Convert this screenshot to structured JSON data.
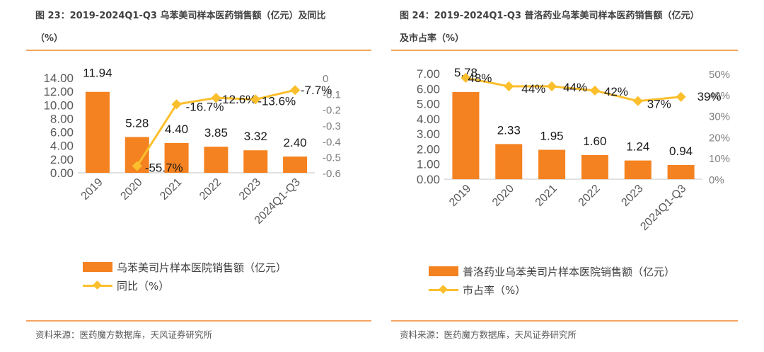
{
  "left": {
    "title_line1": "图 23：2019-2024Q1-Q3 乌苯美司样本医药销售额（亿元）及同比",
    "title_line2": "（%）",
    "legend": {
      "bar": "乌苯美司片样本医院销售额（亿元）",
      "line": "同比（%）"
    },
    "source": "资料来源：医药魔方数据库，天风证券研究所"
  },
  "right": {
    "title_line1": "图 24：2019-2024Q1-Q3 普洛药业乌苯美司样本医药销售额（亿元）",
    "title_line2": "及市占率（%）",
    "legend": {
      "bar": "普洛药业乌苯美司片样本医院销售额（亿元）",
      "line": "市占率（%）"
    },
    "source": "资料来源：医药魔方数据库，天风证券研究所"
  },
  "colors": {
    "bar": "#f58220",
    "line": "#fbbf2d",
    "rule": "#f4a460",
    "axis": "#d9d9d9",
    "tick_text": "#595959"
  },
  "chart_data": [
    {
      "type": "bar+line",
      "title": "图 23：2019-2024Q1-Q3 乌苯美司样本医药销售额（亿元）及同比（%）",
      "categories": [
        "2019",
        "2020",
        "2021",
        "2022",
        "2023",
        "2024Q1-Q3"
      ],
      "series": [
        {
          "name": "乌苯美司片样本医院销售额（亿元）",
          "type": "bar",
          "axis": "left",
          "values": [
            11.94,
            5.28,
            4.4,
            3.85,
            3.32,
            2.4
          ],
          "labels": [
            "11.94",
            "5.28",
            "4.40",
            "3.85",
            "3.32",
            "2.40"
          ]
        },
        {
          "name": "同比（%）",
          "type": "line",
          "axis": "right",
          "values": [
            null,
            -0.557,
            -0.167,
            -0.126,
            -0.136,
            -0.077
          ],
          "labels": [
            "",
            "-55.7%",
            "-16.7%",
            "-12.6%",
            "-13.6%",
            "-7.7%"
          ]
        }
      ],
      "y_left": {
        "ylim": [
          0,
          14
        ],
        "ticks": [
          "0.00",
          "2.00",
          "4.00",
          "6.00",
          "8.00",
          "10.00",
          "12.00",
          "14.00"
        ]
      },
      "y_right": {
        "ylim": [
          -0.6,
          0
        ],
        "ticks": [
          "-0.6",
          "-0.5",
          "-0.4",
          "-0.3",
          "-0.2",
          "-0.1",
          "0"
        ]
      },
      "grid": false,
      "legend_position": "bottom"
    },
    {
      "type": "bar+line",
      "title": "图 24：2019-2024Q1-Q3 普洛药业乌苯美司样本医药销售额（亿元）及市占率（%）",
      "categories": [
        "2019",
        "2020",
        "2021",
        "2022",
        "2023",
        "2024Q1-Q3"
      ],
      "series": [
        {
          "name": "普洛药业乌苯美司片样本医院销售额（亿元）",
          "type": "bar",
          "axis": "left",
          "values": [
            5.78,
            2.33,
            1.95,
            1.6,
            1.24,
            0.94
          ],
          "labels": [
            "5.78",
            "2.33",
            "1.95",
            "1.60",
            "1.24",
            "0.94"
          ]
        },
        {
          "name": "市占率（%）",
          "type": "line",
          "axis": "right",
          "values": [
            48,
            44,
            44,
            42,
            37,
            39
          ],
          "labels": [
            "48%",
            "44%",
            "44%",
            "42%",
            "37%",
            "39%"
          ]
        }
      ],
      "y_left": {
        "ylim": [
          0,
          7
        ],
        "ticks": [
          "0.00",
          "1.00",
          "2.00",
          "3.00",
          "4.00",
          "5.00",
          "6.00",
          "7.00"
        ]
      },
      "y_right": {
        "ylim": [
          0,
          50
        ],
        "ticks": [
          "0%",
          "10%",
          "20%",
          "30%",
          "40%",
          "50%"
        ]
      },
      "grid": false,
      "legend_position": "bottom"
    }
  ]
}
